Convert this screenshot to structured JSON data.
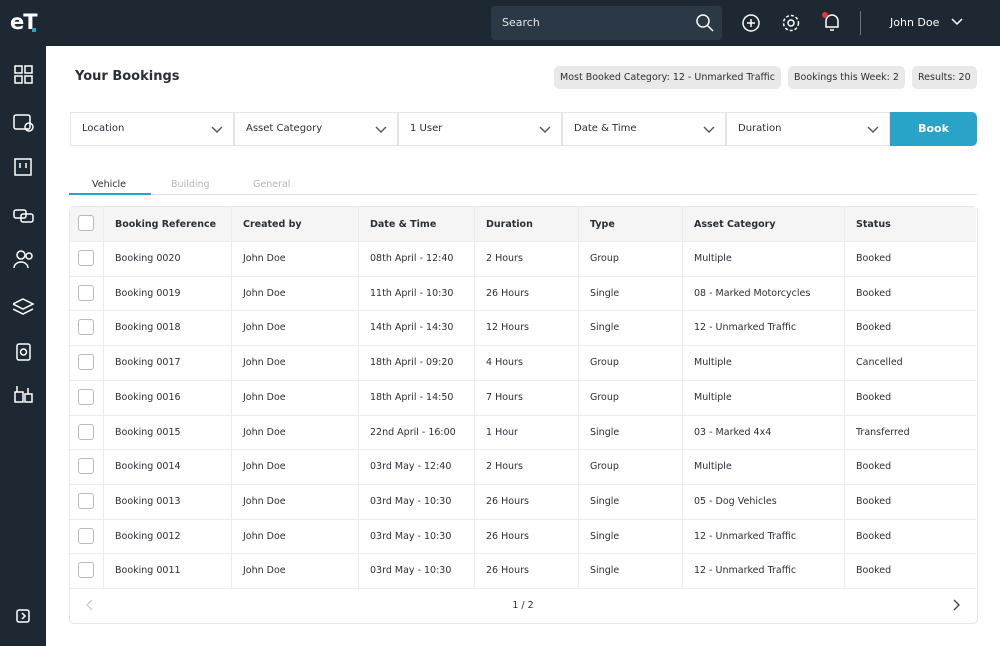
{
  "header": {
    "logo": "eT",
    "search_placeholder": "Search",
    "user_name": "John Doe"
  },
  "page": {
    "title": "Your Bookings",
    "stats": [
      "Most Booked Category: 12 - Unmarked Traffic",
      "Bookings this Week: 2",
      "Results: 20"
    ]
  },
  "filters": [
    "Location",
    "Asset Category",
    "1 User",
    "Date & Time",
    "Duration"
  ],
  "book_button": "Book",
  "tabs": [
    "Vehicle",
    "Building",
    "General"
  ],
  "table": {
    "columns": [
      "Booking Reference",
      "Created by",
      "Date & Time",
      "Duration",
      "Type",
      "Asset Category",
      "Status"
    ],
    "rows": [
      [
        "Booking 0020",
        "John Doe",
        "08th April - 12:40",
        "2 Hours",
        "Group",
        "Multiple",
        "Booked"
      ],
      [
        "Booking 0019",
        "John Doe",
        "11th April - 10:30",
        "26 Hours",
        "Single",
        "08 - Marked Motorcycles",
        "Booked"
      ],
      [
        "Booking 0018",
        "John Doe",
        "14th April - 14:30",
        "12 Hours",
        "Single",
        "12 - Unmarked Traffic",
        "Booked"
      ],
      [
        "Booking 0017",
        "John Doe",
        "18th April - 09:20",
        "4 Hours",
        "Group",
        "Multiple",
        "Cancelled"
      ],
      [
        "Booking 0016",
        "John Doe",
        "18th April - 14:50",
        "7 Hours",
        "Group",
        "Multiple",
        "Booked"
      ],
      [
        "Booking 0015",
        "John Doe",
        "22nd April - 16:00",
        "1 Hour",
        "Single",
        "03 - Marked 4x4",
        "Transferred"
      ],
      [
        "Booking 0014",
        "John Doe",
        "03rd May - 12:40",
        "2 Hours",
        "Group",
        "Multiple",
        "Booked"
      ],
      [
        "Booking 0013",
        "John Doe",
        "03rd May - 10:30",
        "26 Hours",
        "Single",
        "05 - Dog Vehicles",
        "Booked"
      ],
      [
        "Booking 0012",
        "John Doe",
        "03rd May - 10:30",
        "26 Hours",
        "Single",
        "12 - Unmarked Traffic",
        "Booked"
      ],
      [
        "Booking 0011",
        "John Doe",
        "03rd May - 10:30",
        "26 Hours",
        "Single",
        "12 - Unmarked Traffic",
        "Booked"
      ]
    ]
  },
  "pagination": "1 / 2"
}
